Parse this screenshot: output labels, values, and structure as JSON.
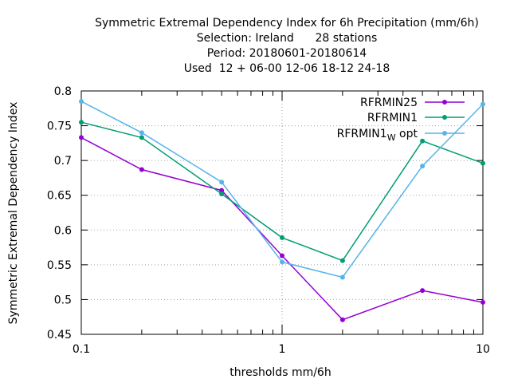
{
  "chart_data": {
    "type": "line",
    "title_lines": [
      "Symmetric Extremal Dependency Index  for 6h Precipitation (mm/6h)",
      "Selection: Ireland      28 stations",
      "Period: 20180601-20180614",
      "Used  12 + 06-00 12-06 18-12 24-18"
    ],
    "xlabel": "thresholds mm/6h",
    "ylabel": "Symmetric Extremal Dependency Index",
    "xscale": "log",
    "xlim": [
      0.1,
      10
    ],
    "ylim": [
      0.45,
      0.8
    ],
    "x_ticks": [
      0.1,
      1,
      10
    ],
    "x_tick_labels": [
      "0.1",
      "1",
      "10"
    ],
    "y_ticks": [
      0.45,
      0.5,
      0.55,
      0.6,
      0.65,
      0.7,
      0.75,
      0.8
    ],
    "y_tick_labels": [
      "0.45",
      "0.5",
      "0.55",
      "0.6",
      "0.65",
      "0.7",
      "0.75",
      "0.8"
    ],
    "grid": true,
    "legend_position": "top-right",
    "x": [
      0.1,
      0.2,
      0.5,
      1,
      2,
      5,
      10
    ],
    "series": [
      {
        "name": "RFRMIN25",
        "color": "#9400d3",
        "values": [
          0.733,
          0.687,
          0.657,
          0.563,
          0.471,
          0.513,
          0.496
        ]
      },
      {
        "name": "RFRMIN1",
        "color": "#009e73",
        "values": [
          0.755,
          0.733,
          0.652,
          0.589,
          0.556,
          0.728,
          0.696
        ]
      },
      {
        "name": "RFRMIN1",
        "name_sub": "W",
        "name_suffix": " opt",
        "color": "#56b4e9",
        "values": [
          0.785,
          0.74,
          0.669,
          0.554,
          0.532,
          0.692,
          0.781
        ]
      }
    ]
  }
}
